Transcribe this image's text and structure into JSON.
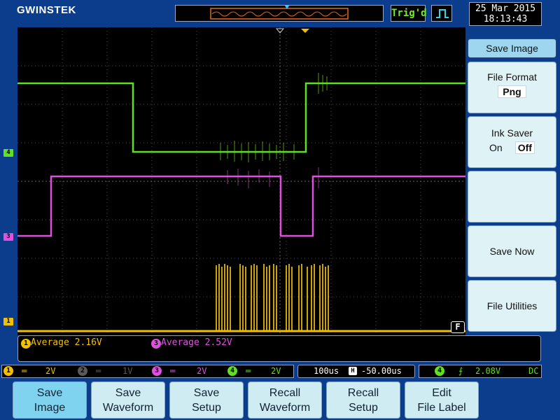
{
  "brand": "GWINSTEK",
  "trigger_status": "Trig'd",
  "datetime": {
    "date": "25 Mar 2015",
    "time": "18:13:43"
  },
  "channel_markers": {
    "ch4": "4",
    "ch3": "3",
    "ch1": "1"
  },
  "fft_marker": "F",
  "measurements": {
    "ch1_badge": "1",
    "ch1_text": "Average 2.16V",
    "ch3_badge": "3",
    "ch3_text": "Average 2.52V"
  },
  "status": {
    "ch1_num": "1",
    "ch1_scale": "2V",
    "ch2_num": "2",
    "ch2_scale": "1V",
    "ch3_num": "3",
    "ch3_scale": "2V",
    "ch4_num": "4",
    "ch4_scale": "2V",
    "timebase": "100us",
    "position": "-50.00us",
    "trig_src": "4",
    "trig_level": "2.08V",
    "coupling": "DC"
  },
  "side_menu": {
    "title": "Save Image",
    "file_format_label": "File Format",
    "file_format_value": "Png",
    "ink_saver_label": "Ink Saver",
    "ink_saver_on": "On",
    "ink_saver_off": "Off",
    "save_now": "Save Now",
    "file_utilities": "File Utilities"
  },
  "bottom_menu": [
    {
      "l1": "Save",
      "l2": "Image"
    },
    {
      "l1": "Save",
      "l2": "Waveform"
    },
    {
      "l1": "Save",
      "l2": "Setup"
    },
    {
      "l1": "Recall",
      "l2": "Waveform"
    },
    {
      "l1": "Recall",
      "l2": "Setup"
    },
    {
      "l1": "Edit",
      "l2": "File Label"
    }
  ],
  "colors": {
    "ch1": "#f2c000",
    "ch3": "#e050e0",
    "ch4": "#5fe020",
    "ch2_dim": "#5a5a5a",
    "background": "#0b3d8c"
  }
}
